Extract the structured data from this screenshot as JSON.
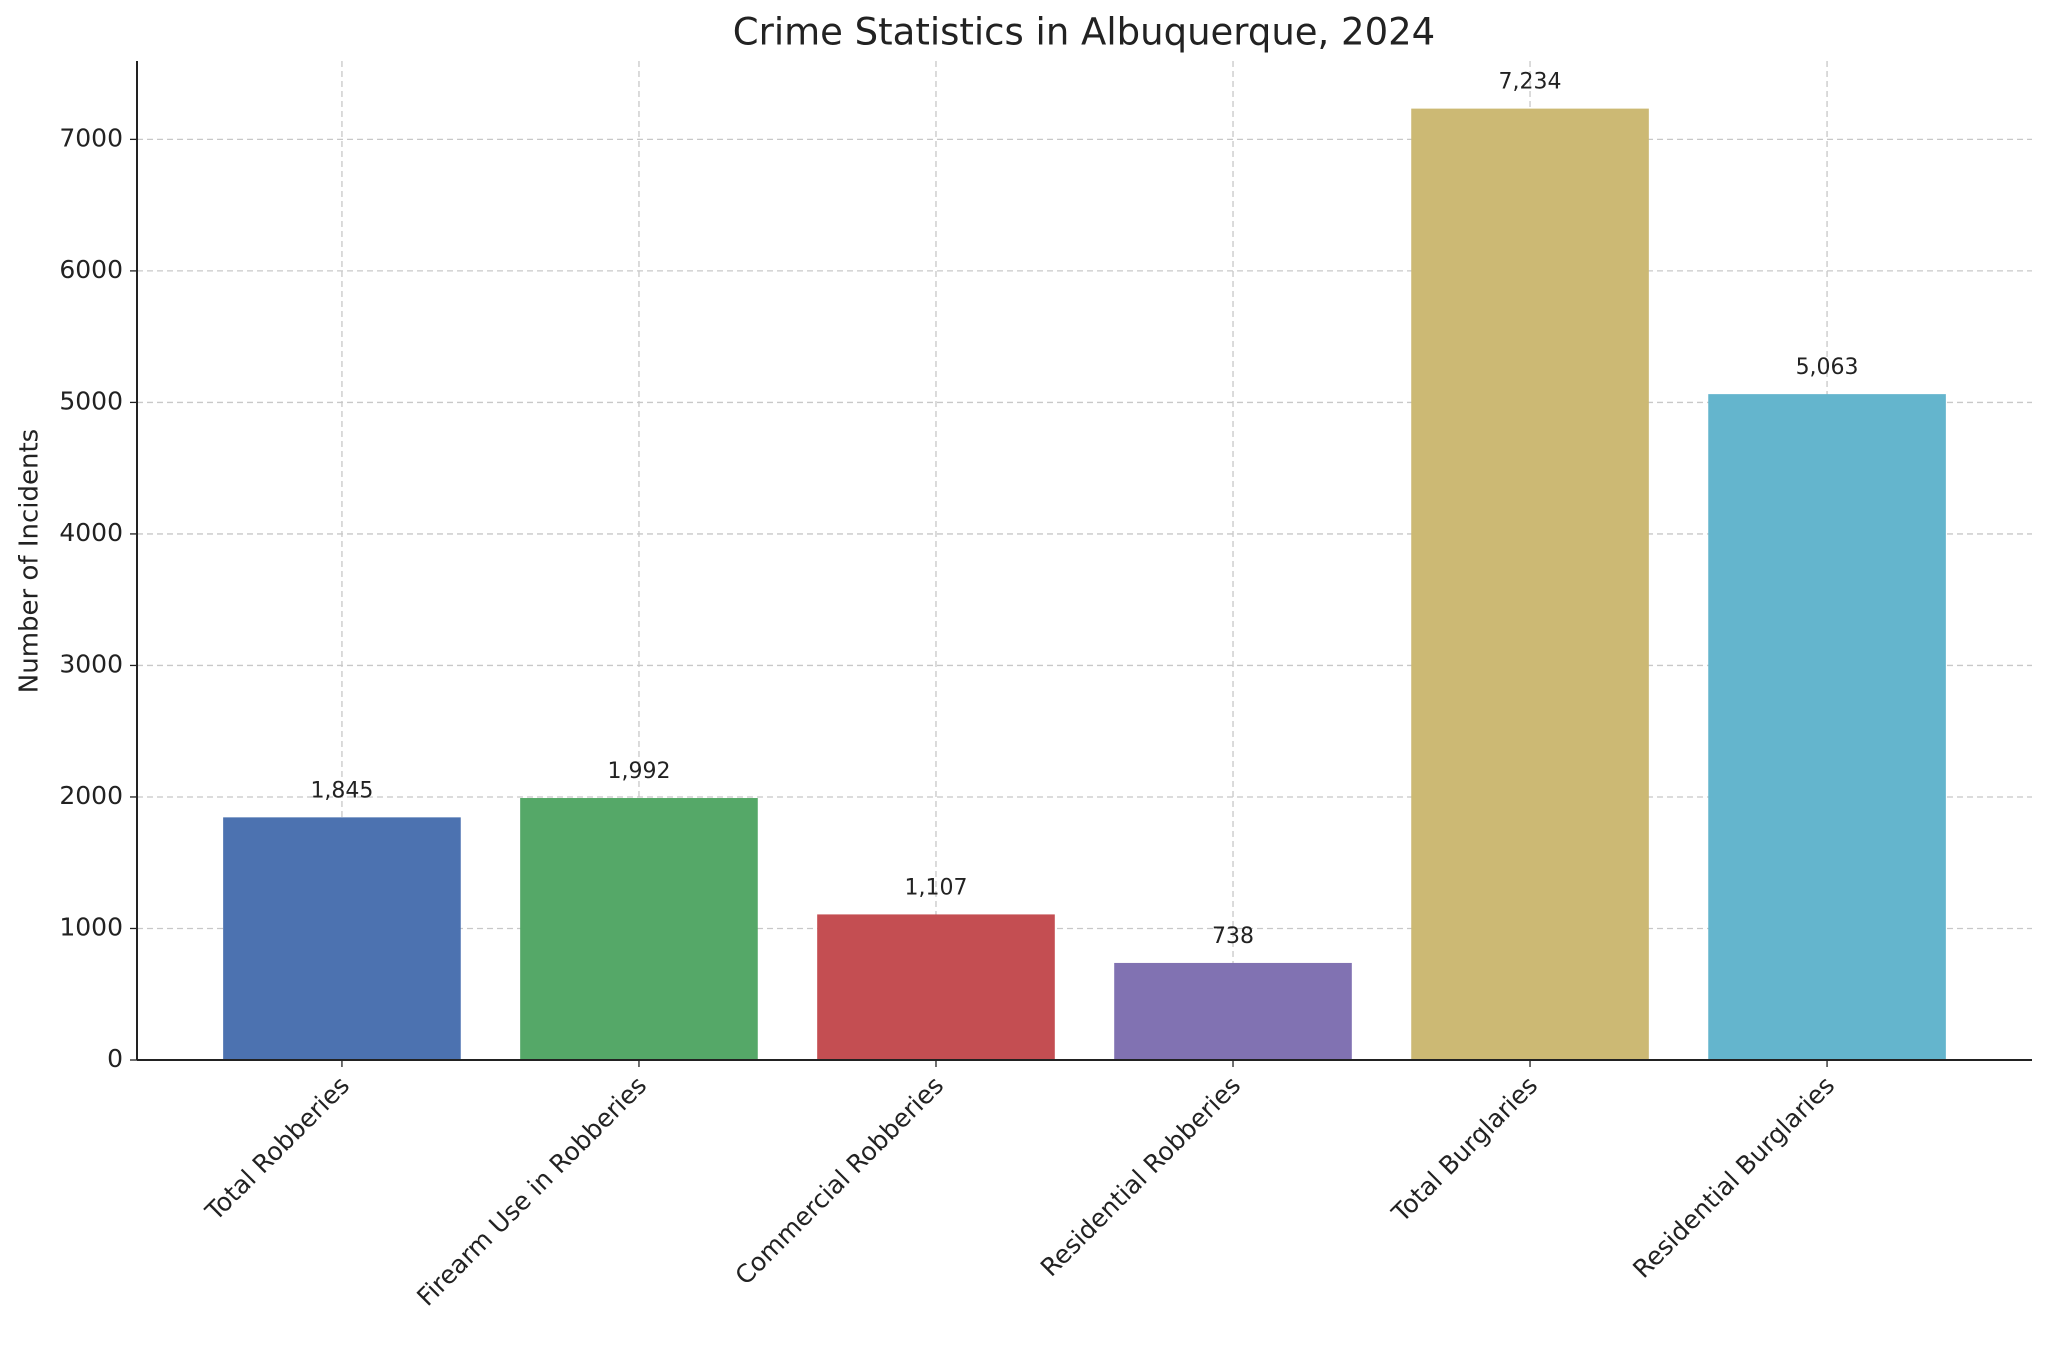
{
  "chart_data": {
    "type": "bar",
    "title": "Crime Statistics in Albuquerque, 2024",
    "y_label": "Number of Incidents",
    "categories": [
      "Total Robberies",
      "Firearm Use in Robberies",
      "Commercial Robberies",
      "Residential Robberies",
      "Total Burglaries",
      "Residential Burglaries"
    ],
    "values": [
      1845,
      1992,
      1107,
      738,
      7234,
      5063
    ],
    "value_labels": [
      "1,845",
      "1,992",
      "1,107",
      "738",
      "7,234",
      "5,063"
    ],
    "colors": [
      "#4c72b0",
      "#55a868",
      "#c44e52",
      "#8172b2",
      "#ccb974",
      "#64b5cd"
    ],
    "ylim": [
      0,
      7596
    ],
    "yticks": [
      0,
      1000,
      2000,
      3000,
      4000,
      5000,
      6000,
      7000
    ],
    "grid": true
  }
}
